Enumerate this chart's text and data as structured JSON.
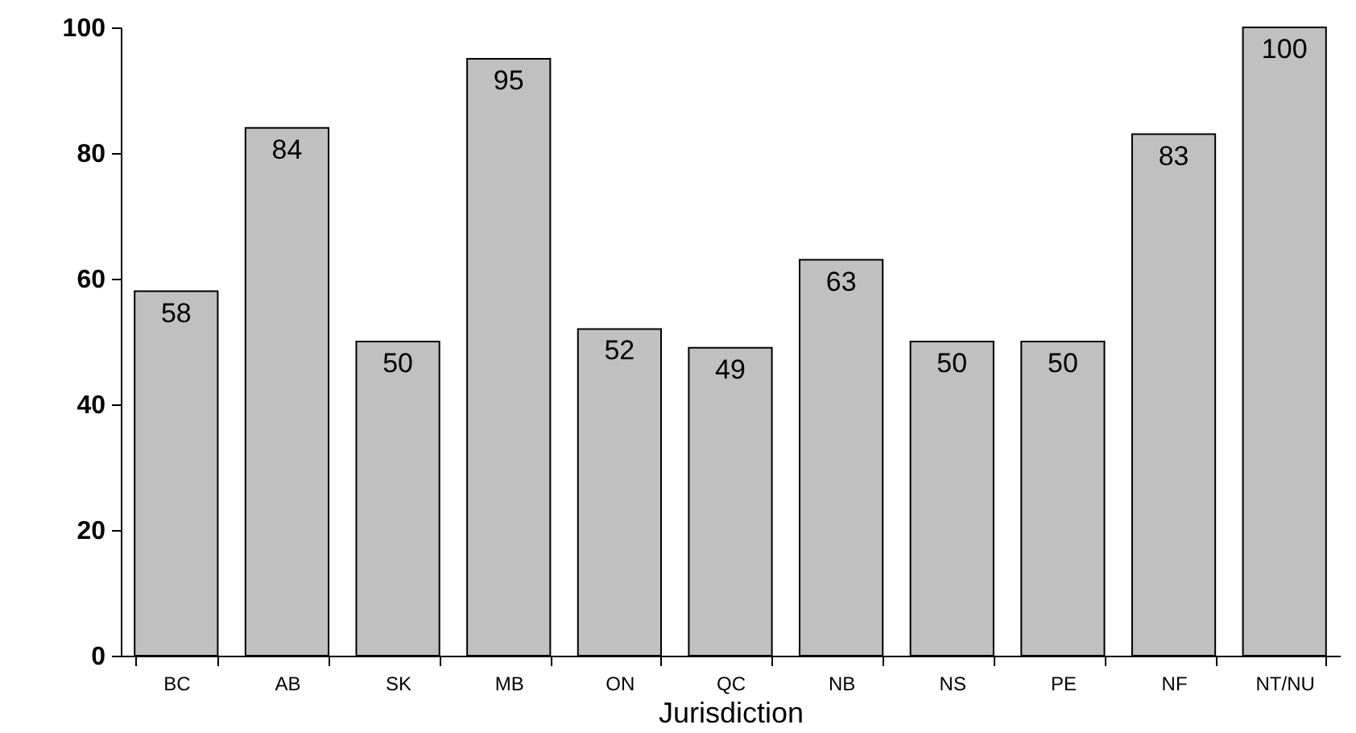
{
  "chart_data": {
    "type": "bar",
    "xlabel": "Jurisdiction",
    "categories": [
      "BC",
      "AB",
      "SK",
      "MB",
      "ON",
      "QC",
      "NB",
      "NS",
      "PE",
      "NF",
      "NT/NU"
    ],
    "values": [
      58,
      84,
      50,
      95,
      52,
      49,
      63,
      50,
      50,
      83,
      100
    ],
    "color": "#c0c0c0",
    "ylim": [
      0,
      100
    ],
    "yticks": [
      0,
      20,
      40,
      60,
      80,
      100
    ],
    "grid": false,
    "data_labels": true
  }
}
